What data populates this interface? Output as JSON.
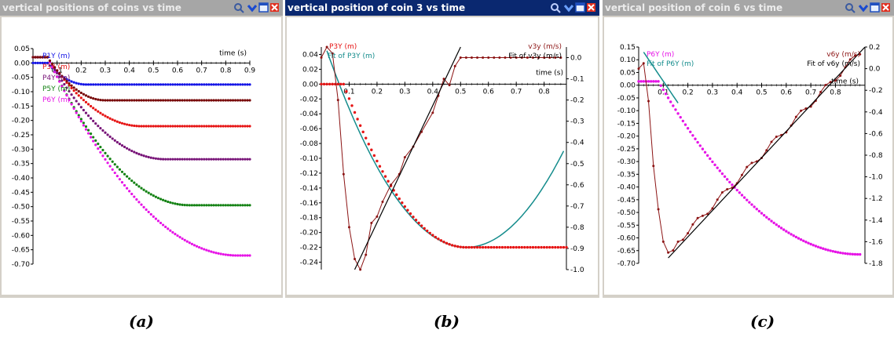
{
  "panels": [
    {
      "title": "vertical positions of coins vs time",
      "caption": "(a)"
    },
    {
      "title": "vertical position of coin 3 vs time",
      "caption": "(b)"
    },
    {
      "title": "vertical position of coin 6 vs time",
      "caption": "(c)"
    }
  ],
  "chart_data": [
    {
      "type": "scatter",
      "title": "vertical positions of coins vs time",
      "xlabel": "time (s)",
      "ylabel": "",
      "xlim": [
        0,
        0.9
      ],
      "ylim": [
        -0.7,
        0.05
      ],
      "x_ticks": [
        "0.1",
        "0.2",
        "0.3",
        "0.4",
        "0.5",
        "0.6",
        "0.7",
        "0.8",
        "0.9"
      ],
      "y_ticks": [
        "0.05",
        "0.00",
        "-0.05",
        "-0.10",
        "-0.15",
        "-0.20",
        "-0.25",
        "-0.30",
        "-0.35",
        "-0.40",
        "-0.45",
        "-0.50",
        "-0.55",
        "-0.60",
        "-0.65",
        "-0.70"
      ],
      "series": [
        {
          "name": "P1Y (m)",
          "color": "#1414e6",
          "t_stop": 0.22,
          "y_final": -0.075
        },
        {
          "name": "P3Y (m)",
          "color": "#e61414",
          "t_stop": 0.45,
          "y_final": -0.22
        },
        {
          "name": "P4Y (m)",
          "color": "#781478",
          "t_stop": 0.55,
          "y_final": -0.335
        },
        {
          "name": "P5Y (m)",
          "color": "#148214",
          "t_stop": 0.65,
          "y_final": -0.495
        },
        {
          "name": "P6Y (m)",
          "color": "#e614e6",
          "t_stop": 0.85,
          "y_final": -0.67
        },
        {
          "name": "",
          "color": "#780a0a",
          "t_stop": 0.3,
          "y_final": -0.13
        }
      ]
    },
    {
      "type": "line",
      "title": "vertical position of coin 3 vs time",
      "xlabel": "time (s)",
      "ylabel_left": "",
      "ylabel_right": "",
      "xlim": [
        0,
        0.88
      ],
      "ylim": [
        -0.25,
        0.05
      ],
      "y2lim": [
        -1.0,
        0.05
      ],
      "x_ticks": [
        "0.1",
        "0.2",
        "0.3",
        "0.4",
        "0.5",
        "0.6",
        "0.7",
        "0.8"
      ],
      "y_ticks": [
        "0.04",
        "0.02",
        "0.00",
        "-0.02",
        "-0.04",
        "-0.06",
        "-0.08",
        "-0.10",
        "-0.12",
        "-0.14",
        "-0.16",
        "-0.18",
        "-0.20",
        "-0.22",
        "-0.24"
      ],
      "y2_ticks": [
        "0.0",
        "-0.1",
        "-0.2",
        "-0.3",
        "-0.4",
        "-0.5",
        "-0.6",
        "-0.7",
        "-0.8",
        "-0.9",
        "-1.0"
      ],
      "legend": [
        "P3Y (m)",
        "Fit of P3Y (m)",
        "v3y (m/s)",
        "Fit of v3y (m/s)"
      ],
      "series": [
        {
          "name": "P3Y (m)",
          "color": "#e61414",
          "t_stop": 0.52,
          "y_final": -0.22,
          "t_start": 0.08
        },
        {
          "name": "Fit of P3Y (m)",
          "color": "#148c8c",
          "vertex_t": 0.52,
          "vertex_y": -0.22
        },
        {
          "name": "v3y (m/s)",
          "color": "#8c1414",
          "t_stop": 0.52,
          "y_final": 0.0,
          "min_t": 0.14,
          "min_v": -1.0
        },
        {
          "name": "Fit of v3y (m/s)",
          "color": "#000000",
          "x": [
            0.12,
            0.5
          ],
          "y": [
            -1.0,
            0.05
          ]
        }
      ]
    },
    {
      "type": "line",
      "title": "vertical position of coin 6 vs time",
      "xlabel": "time (s)",
      "ylabel_left": "",
      "ylabel_right": "",
      "xlim": [
        0,
        0.92
      ],
      "ylim": [
        -0.7,
        0.15
      ],
      "y2lim": [
        -1.8,
        0.2
      ],
      "x_ticks": [
        "0.1",
        "0.2",
        "0.3",
        "0.4",
        "0.5",
        "0.6",
        "0.7",
        "0.8"
      ],
      "y_ticks": [
        "0.15",
        "0.10",
        "0.05",
        "0.00",
        "-0.05",
        "-0.10",
        "-0.15",
        "-0.20",
        "-0.25",
        "-0.30",
        "-0.35",
        "-0.40",
        "-0.45",
        "-0.50",
        "-0.55",
        "-0.60",
        "-0.65",
        "-0.70"
      ],
      "y2_ticks": [
        "0.2",
        "0.0",
        "-0.2",
        "-0.4",
        "-0.6",
        "-0.8",
        "-1.0",
        "-1.2",
        "-1.4",
        "-1.6",
        "-1.8"
      ],
      "legend": [
        "P6Y (m)",
        "Fit of P6Y (m)",
        "v6y (m/s)",
        "Fit of v6y (m/s)"
      ],
      "series": [
        {
          "name": "P6Y (m)",
          "color": "#e614e6",
          "t_stop": 0.9,
          "y_final": -0.665,
          "t_start": 0.08
        },
        {
          "name": "Fit of P6Y (m)",
          "color": "#148c8c"
        },
        {
          "name": "v6y (m/s)",
          "color": "#8c1414",
          "min_t": 0.12,
          "min_v": -1.7
        },
        {
          "name": "Fit of v6y (m/s)",
          "color": "#000000",
          "x": [
            0.12,
            0.92
          ],
          "y": [
            -1.75,
            0.2
          ]
        }
      ]
    }
  ]
}
